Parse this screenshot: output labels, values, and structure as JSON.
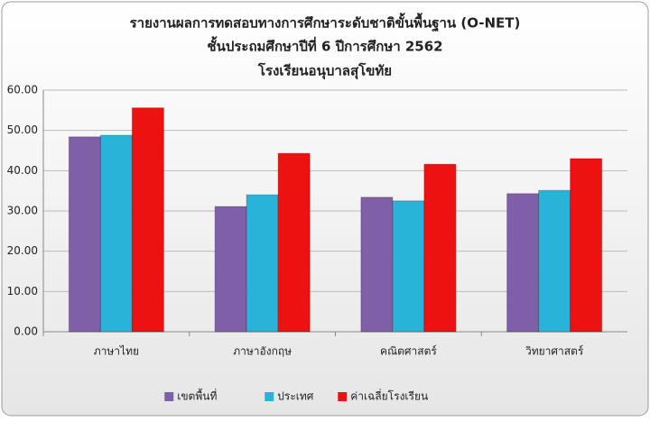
{
  "chart_data": {
    "type": "bar",
    "title": [
      "รายงานผลการทดสอบทางการศึกษาระดับชาติขั้นพื้นฐาน (O-NET)",
      "ชั้นประถมศึกษาปีที่ 6 ปีการศึกษา 2562",
      "โรงเรียนอนุบาลสุโขทัย"
    ],
    "categories": [
      "ภาษาไทย",
      "ภาษาอังกฤษ",
      "คณิตศาสตร์",
      "วิทยาศาสตร์"
    ],
    "series": [
      {
        "name": "เขตพื้นที่",
        "color": "#7f5fa8",
        "values": [
          48.4,
          31.1,
          33.4,
          34.3
        ]
      },
      {
        "name": "ประเทศ",
        "color": "#2ab3d8",
        "values": [
          48.8,
          34.0,
          32.5,
          35.1
        ]
      },
      {
        "name": "ค่าเฉลี่ยโรงเรียน",
        "color": "#ee1111",
        "values": [
          55.6,
          44.3,
          41.6,
          43.0
        ]
      }
    ],
    "ylim": [
      0,
      60
    ],
    "yticks": [
      {
        "value": 0,
        "label": "0.00"
      },
      {
        "value": 10,
        "label": "10.00"
      },
      {
        "value": 20,
        "label": "20.00"
      },
      {
        "value": 30,
        "label": "30.00"
      },
      {
        "value": 40,
        "label": "40.00"
      },
      {
        "value": 50,
        "label": "50.00"
      },
      {
        "value": 60,
        "label": "60.00"
      }
    ],
    "grid": true,
    "legend": "bottom"
  }
}
